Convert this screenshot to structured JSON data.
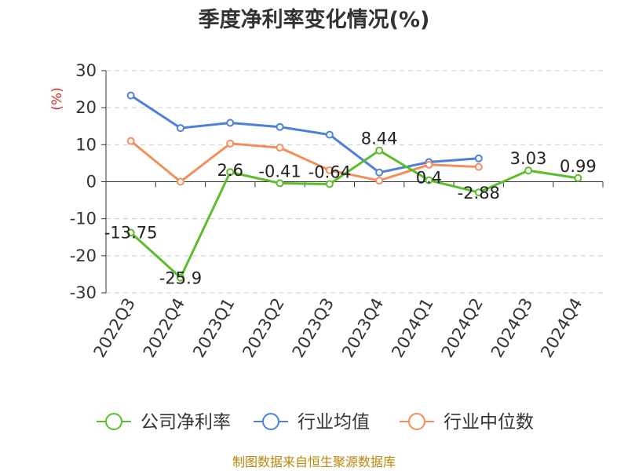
{
  "chart_data": {
    "type": "line",
    "title": "季度净利率变化情况(%)",
    "ylabel": "(%)",
    "ylim": [
      -30,
      30
    ],
    "yticks": [
      30,
      20,
      10,
      0,
      -10,
      -20,
      -30
    ],
    "categories": [
      "2022Q3",
      "2022Q4",
      "2023Q1",
      "2023Q2",
      "2023Q3",
      "2023Q4",
      "2024Q1",
      "2024Q2",
      "2024Q3",
      "2024Q4"
    ],
    "series": [
      {
        "name": "公司净利率",
        "color": "#5bbd2b",
        "values": [
          -13.75,
          -25.9,
          2.6,
          -0.41,
          -0.64,
          8.44,
          0.4,
          -2.88,
          3.03,
          0.99
        ],
        "labels": [
          "-13.75",
          "-25.9",
          "2.6",
          "-0.41",
          "-0.64",
          "8.44",
          "0.4",
          "-2.88",
          "3.03",
          "0.99"
        ]
      },
      {
        "name": "行业均值",
        "color": "#4e7fd9",
        "values": [
          23.3,
          14.5,
          15.9,
          14.8,
          12.7,
          2.5,
          5.3,
          6.3,
          null,
          null
        ]
      },
      {
        "name": "行业中位数",
        "color": "#f58d5b",
        "values": [
          11.0,
          0.0,
          10.3,
          9.2,
          3.1,
          0.3,
          4.6,
          4.0,
          null,
          null
        ]
      }
    ],
    "grid": true,
    "legend_position": "bottom"
  },
  "source": "制图数据来自恒生聚源数据库"
}
